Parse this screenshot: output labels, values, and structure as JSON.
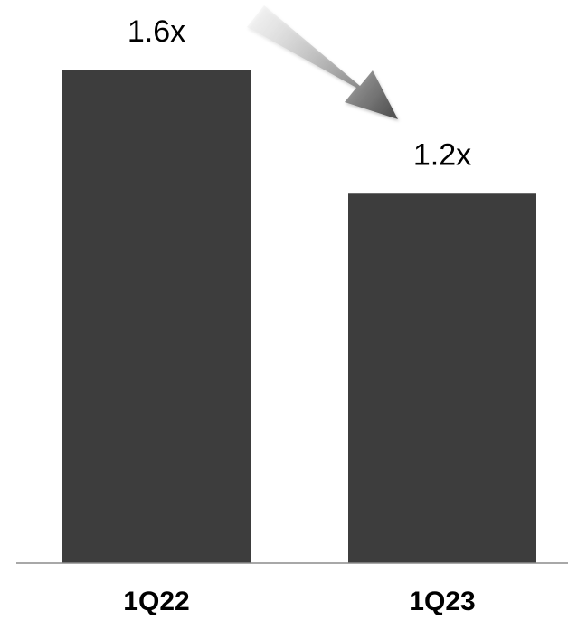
{
  "chart_data": {
    "type": "bar",
    "categories": [
      "1Q22",
      "1Q23"
    ],
    "values": [
      1.6,
      1.2
    ],
    "value_labels": [
      "1.6x",
      "1.2x"
    ],
    "title": "",
    "xlabel": "",
    "ylabel": "",
    "ylim": [
      0,
      1.6
    ],
    "grid": false,
    "legend": "none",
    "annotation": "arrow pointing down from 1Q22 to 1Q23",
    "colors": {
      "bar": "#3d3d3d",
      "axis": "#8c8c8c",
      "text": "#000000",
      "arrow_dark": "#555555",
      "arrow_light": "#e6e6e6"
    }
  }
}
